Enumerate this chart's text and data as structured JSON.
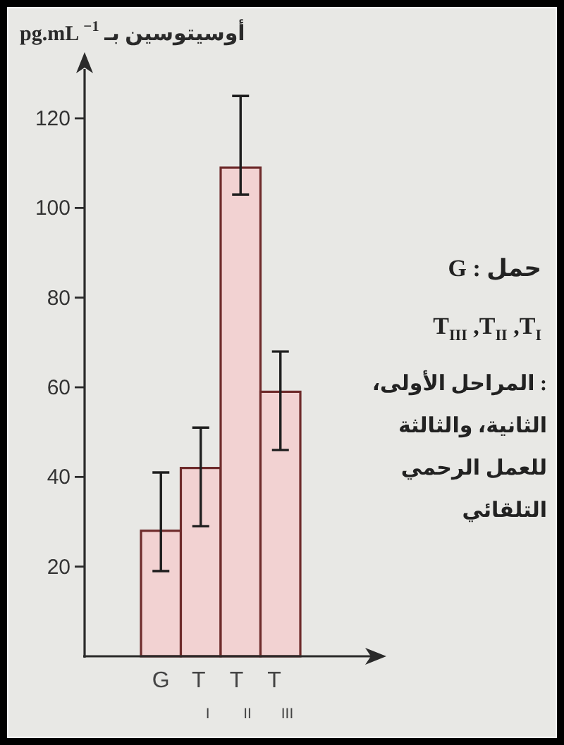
{
  "chart_data": {
    "type": "bar",
    "ylabel": "أوسيتوسين بـ pg.mL$^{−1}$",
    "categories": [
      "G",
      "T$_{I}$",
      "T$_{II}$",
      "T$_{III}$"
    ],
    "values": [
      28,
      42,
      109,
      59
    ],
    "errors": [
      [
        19,
        41
      ],
      [
        29,
        51
      ],
      [
        103,
        125
      ],
      [
        46,
        68
      ]
    ],
    "color": "#f2d2d2",
    "ylim": [
      0,
      131
    ],
    "yticks": [
      20,
      40,
      60,
      80,
      100,
      120
    ],
    "annotations": [
      "G : حمل",
      "T$_{III}$ ,T$_{II}$ ,T$_{I}$",
      ": المراحل الأولى، الثانية، والثالثة للعمل الرحمي التلقائي"
    ]
  }
}
